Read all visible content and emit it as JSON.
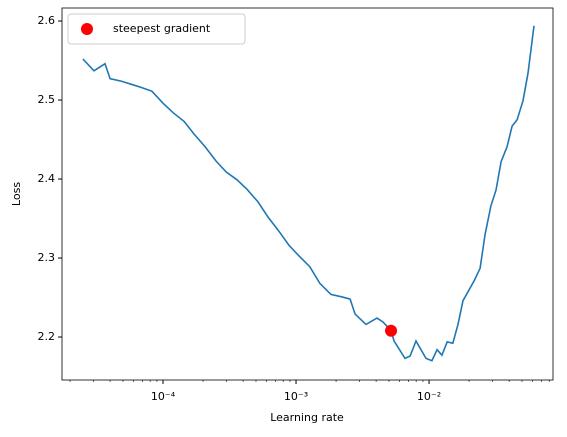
{
  "chart_data": {
    "type": "line",
    "x_label": "Learning rate",
    "y_label": "Loss",
    "xscale": "log",
    "xlim": [
      1.74e-05,
      0.0855
    ],
    "ylim": [
      2.1456,
      2.6165
    ],
    "xticks": [
      {
        "value": 0.0001,
        "label": "10⁻⁴"
      },
      {
        "value": 0.001,
        "label": "10⁻³"
      },
      {
        "value": 0.01,
        "label": "10⁻²"
      }
    ],
    "yticks": [
      2.2,
      2.3,
      2.4,
      2.5,
      2.6
    ],
    "legend": "upper left",
    "series": [
      {
        "style": "line",
        "color": "#1f77b4",
        "x": [
          2.5e-05,
          3.03e-05,
          3.66e-05,
          4e-05,
          4.84e-05,
          5.74e-05,
          6.84e-05,
          8.26e-05,
          0.0001,
          0.000119,
          0.000144,
          0.000171,
          0.000207,
          0.00025,
          0.000298,
          0.00036,
          0.000428,
          0.000518,
          0.000615,
          0.000744,
          0.000885,
          0.00105,
          0.00127,
          0.00151,
          0.00183,
          0.00218,
          0.00255,
          0.00278,
          0.00336,
          0.00406,
          0.00451,
          0.00518,
          0.00546,
          0.0066,
          0.0072,
          0.00798,
          0.00948,
          0.0105,
          0.0115,
          0.0125,
          0.0137,
          0.0151,
          0.0165,
          0.018,
          0.0218,
          0.0242,
          0.0264,
          0.0292,
          0.0319,
          0.0348,
          0.0386,
          0.0421,
          0.0459,
          0.0509,
          0.0555,
          0.0615
        ],
        "values": [
          2.552,
          2.537,
          2.546,
          2.527,
          2.524,
          2.52,
          2.516,
          2.511,
          2.496,
          2.484,
          2.473,
          2.457,
          2.441,
          2.423,
          2.409,
          2.399,
          2.387,
          2.371,
          2.352,
          2.334,
          2.316,
          2.303,
          2.289,
          2.268,
          2.254,
          2.251,
          2.248,
          2.229,
          2.216,
          2.224,
          2.219,
          2.208,
          2.195,
          2.173,
          2.176,
          2.195,
          2.173,
          2.17,
          2.184,
          2.177,
          2.194,
          2.192,
          2.216,
          2.246,
          2.271,
          2.287,
          2.33,
          2.366,
          2.386,
          2.422,
          2.441,
          2.467,
          2.475,
          2.499,
          2.534,
          2.594
        ]
      },
      {
        "style": "marker",
        "name": "steepest gradient",
        "color": "#ff0000",
        "x": [
          0.00518
        ],
        "values": [
          2.208
        ]
      }
    ]
  }
}
